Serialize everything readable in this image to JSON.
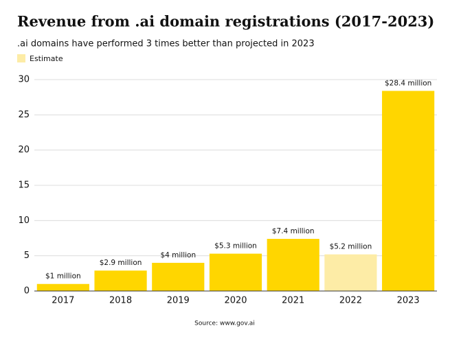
{
  "chart_data": {
    "type": "bar",
    "title": "Revenue from .ai domain registrations (2017-2023)",
    "subtitle": ".ai domains have performed 3 times better than projected in 2023",
    "legend": {
      "label": "Estimate",
      "color": "#fdeca6"
    },
    "categories": [
      "2017",
      "2018",
      "2019",
      "2020",
      "2021",
      "2022",
      "2023"
    ],
    "values": [
      1,
      2.9,
      4,
      5.3,
      7.4,
      5.2,
      28.4
    ],
    "value_labels": [
      "$1 million",
      "$2.9 million",
      "$4 million",
      "$5.3 million",
      "$7.4 million",
      "$5.2 million",
      "$28.4 million"
    ],
    "colors": [
      "#ffd600",
      "#ffd600",
      "#ffd600",
      "#ffd600",
      "#ffd600",
      "#fdeca6",
      "#ffd600"
    ],
    "ylim": [
      0,
      30
    ],
    "yticks": [
      0,
      5,
      10,
      15,
      20,
      25,
      30
    ],
    "grid": true,
    "source": "Source: www.gov.ai"
  }
}
